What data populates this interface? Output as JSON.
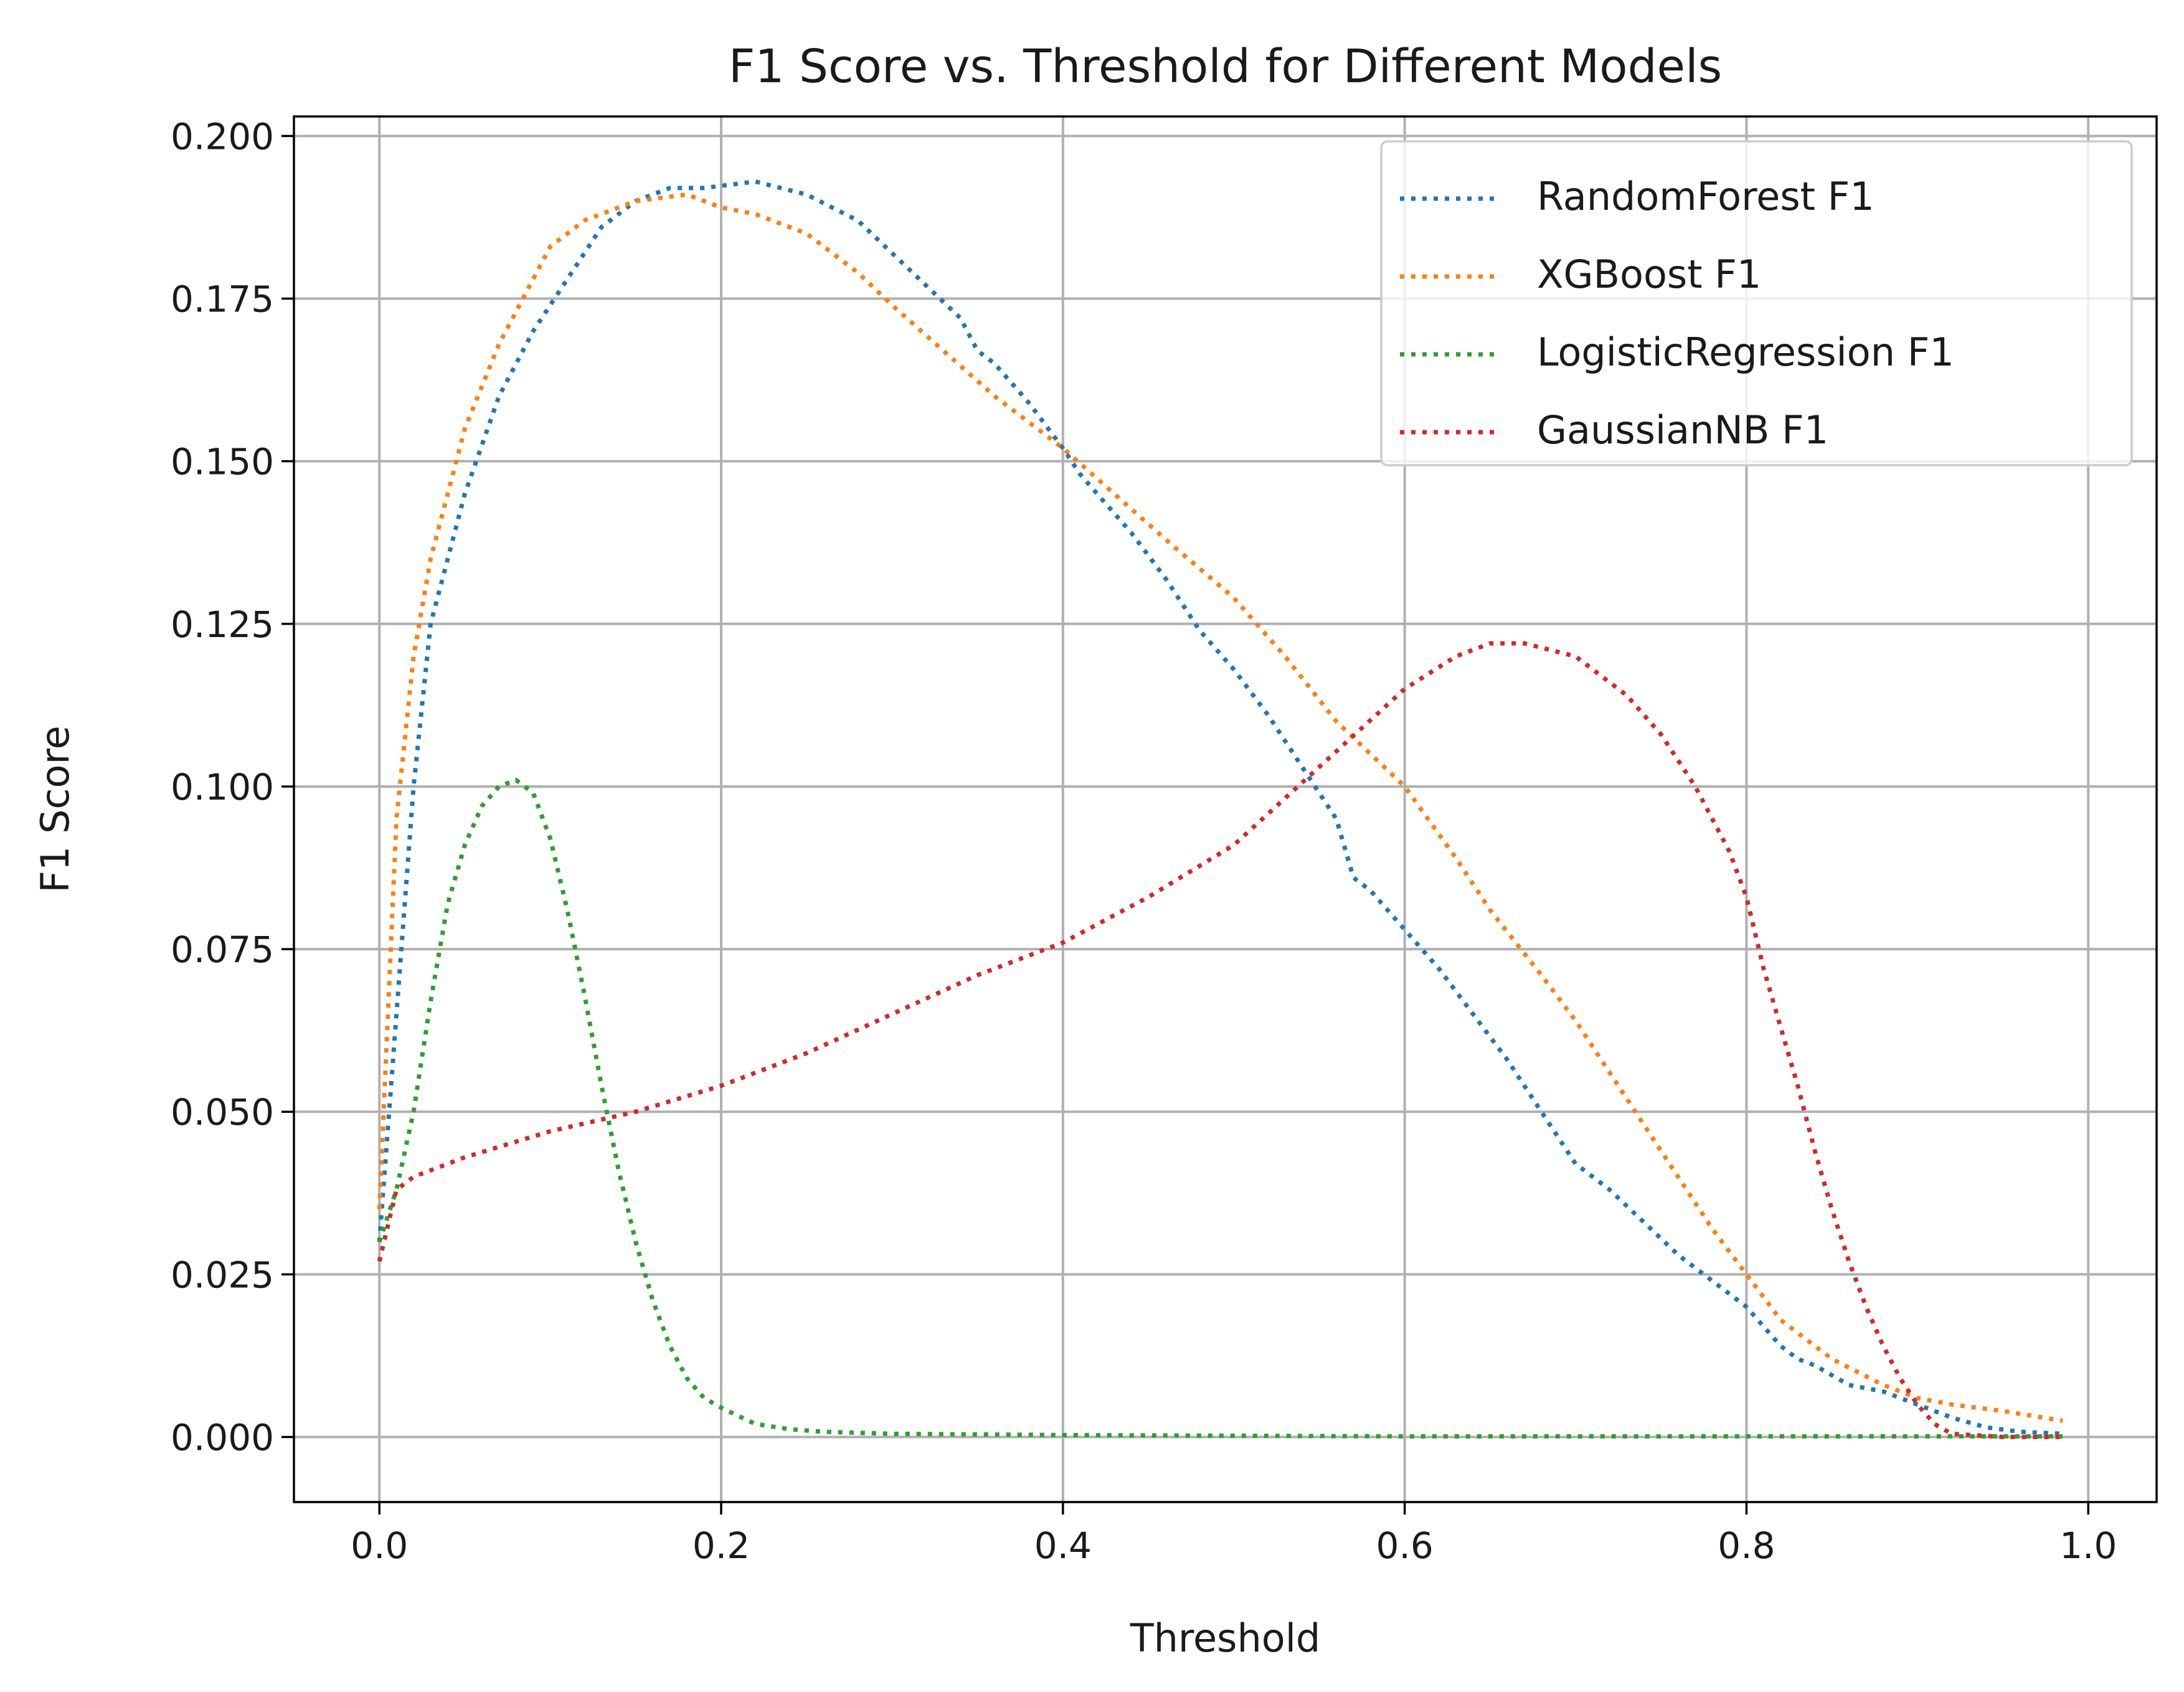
{
  "chart_data": {
    "type": "line",
    "title": "F1 Score vs. Threshold for Different Models",
    "xlabel": "Threshold",
    "ylabel": "F1 Score",
    "xlim": [
      -0.05,
      1.04
    ],
    "ylim": [
      -0.01,
      0.203
    ],
    "xticks": [
      0.0,
      0.2,
      0.4,
      0.6,
      0.8,
      1.0
    ],
    "xtick_labels": [
      "0.0",
      "0.2",
      "0.4",
      "0.6",
      "0.8",
      "1.0"
    ],
    "yticks": [
      0.0,
      0.025,
      0.05,
      0.075,
      0.1,
      0.125,
      0.15,
      0.175,
      0.2
    ],
    "ytick_labels": [
      "0.000",
      "0.025",
      "0.050",
      "0.075",
      "0.100",
      "0.125",
      "0.150",
      "0.175",
      "0.200"
    ],
    "grid": true,
    "legend_position": "top-right",
    "line_style": "dotted",
    "series": [
      {
        "name": "RandomForest F1",
        "color": "#1f77b4",
        "x": [
          0.0,
          0.01,
          0.02,
          0.03,
          0.05,
          0.07,
          0.09,
          0.11,
          0.13,
          0.15,
          0.17,
          0.19,
          0.22,
          0.25,
          0.28,
          0.3,
          0.32,
          0.34,
          0.35,
          0.36,
          0.38,
          0.4,
          0.41,
          0.42,
          0.44,
          0.46,
          0.47,
          0.48,
          0.5,
          0.52,
          0.54,
          0.56,
          0.57,
          0.58,
          0.6,
          0.62,
          0.64,
          0.66,
          0.68,
          0.7,
          0.71,
          0.72,
          0.74,
          0.76,
          0.78,
          0.8,
          0.82,
          0.83,
          0.84,
          0.86,
          0.88,
          0.9,
          0.92,
          0.94,
          0.96,
          0.985
        ],
        "y": [
          0.03,
          0.065,
          0.1,
          0.125,
          0.145,
          0.16,
          0.17,
          0.178,
          0.186,
          0.19,
          0.192,
          0.192,
          0.193,
          0.191,
          0.187,
          0.182,
          0.177,
          0.172,
          0.167,
          0.165,
          0.159,
          0.152,
          0.148,
          0.145,
          0.139,
          0.132,
          0.128,
          0.124,
          0.118,
          0.111,
          0.103,
          0.095,
          0.086,
          0.084,
          0.078,
          0.072,
          0.065,
          0.058,
          0.05,
          0.042,
          0.04,
          0.038,
          0.033,
          0.028,
          0.024,
          0.02,
          0.014,
          0.012,
          0.011,
          0.008,
          0.007,
          0.005,
          0.003,
          0.0015,
          0.0008,
          0.0005
        ]
      },
      {
        "name": "XGBoost F1",
        "color": "#ff7f0e",
        "x": [
          0.0,
          0.01,
          0.02,
          0.03,
          0.04,
          0.05,
          0.07,
          0.09,
          0.1,
          0.12,
          0.15,
          0.18,
          0.2,
          0.22,
          0.25,
          0.28,
          0.3,
          0.33,
          0.36,
          0.4,
          0.43,
          0.46,
          0.5,
          0.53,
          0.56,
          0.6,
          0.63,
          0.65,
          0.68,
          0.7,
          0.72,
          0.75,
          0.78,
          0.8,
          0.82,
          0.85,
          0.88,
          0.9,
          0.92,
          0.95,
          0.985
        ],
        "y": [
          0.035,
          0.095,
          0.12,
          0.135,
          0.145,
          0.155,
          0.168,
          0.178,
          0.183,
          0.187,
          0.19,
          0.191,
          0.189,
          0.188,
          0.185,
          0.179,
          0.174,
          0.167,
          0.16,
          0.152,
          0.145,
          0.138,
          0.129,
          0.12,
          0.11,
          0.1,
          0.089,
          0.081,
          0.071,
          0.064,
          0.056,
          0.044,
          0.032,
          0.025,
          0.018,
          0.012,
          0.008,
          0.006,
          0.005,
          0.004,
          0.0025
        ]
      },
      {
        "name": "LogisticRegression F1",
        "color": "#2ca02c",
        "x": [
          0.0,
          0.01,
          0.02,
          0.03,
          0.04,
          0.05,
          0.06,
          0.07,
          0.08,
          0.09,
          0.1,
          0.11,
          0.12,
          0.13,
          0.14,
          0.15,
          0.16,
          0.17,
          0.18,
          0.19,
          0.2,
          0.22,
          0.24,
          0.26,
          0.3,
          0.4,
          0.5,
          0.6,
          0.7,
          0.8,
          0.9,
          0.985
        ],
        "y": [
          0.03,
          0.038,
          0.05,
          0.067,
          0.082,
          0.091,
          0.097,
          0.1,
          0.101,
          0.099,
          0.092,
          0.081,
          0.068,
          0.054,
          0.041,
          0.03,
          0.021,
          0.014,
          0.009,
          0.006,
          0.0045,
          0.002,
          0.0012,
          0.0008,
          0.0005,
          0.0003,
          0.0002,
          0.0001,
          0.0001,
          0.0001,
          0.0001,
          0.0001
        ]
      },
      {
        "name": "GaussianNB F1",
        "color": "#d62728",
        "x": [
          0.0,
          0.01,
          0.02,
          0.05,
          0.1,
          0.15,
          0.2,
          0.25,
          0.3,
          0.35,
          0.4,
          0.45,
          0.5,
          0.55,
          0.6,
          0.63,
          0.65,
          0.67,
          0.7,
          0.73,
          0.75,
          0.77,
          0.79,
          0.8,
          0.81,
          0.82,
          0.83,
          0.84,
          0.85,
          0.86,
          0.87,
          0.88,
          0.89,
          0.9,
          0.91,
          0.92,
          0.95,
          0.985
        ],
        "y": [
          0.027,
          0.038,
          0.04,
          0.043,
          0.047,
          0.05,
          0.054,
          0.059,
          0.065,
          0.071,
          0.076,
          0.083,
          0.091,
          0.103,
          0.115,
          0.12,
          0.122,
          0.122,
          0.12,
          0.114,
          0.108,
          0.1,
          0.09,
          0.083,
          0.072,
          0.063,
          0.054,
          0.044,
          0.035,
          0.027,
          0.02,
          0.014,
          0.009,
          0.005,
          0.002,
          0.0005,
          0.0,
          0.0
        ]
      }
    ]
  }
}
